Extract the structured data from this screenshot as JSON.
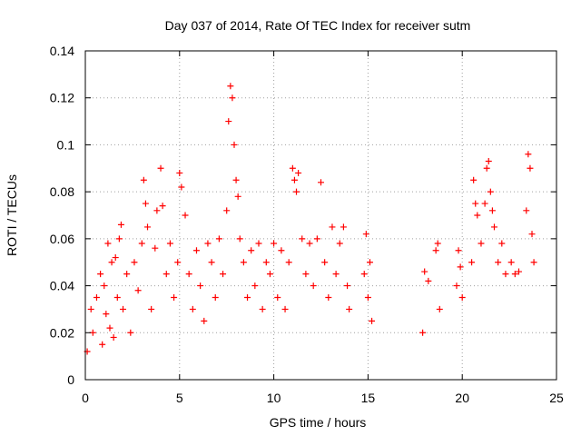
{
  "chart_data": {
    "type": "scatter",
    "title": "Day 037 of 2014, Rate Of TEC Index for receiver sutm",
    "xlabel": "GPS time / hours",
    "ylabel": "ROTI / TECUs",
    "xlim": [
      0,
      25
    ],
    "ylim": [
      0,
      0.14
    ],
    "x_ticks": [
      0,
      5,
      10,
      15,
      20,
      25
    ],
    "x_tick_labels": [
      "0",
      "5",
      "10",
      "15",
      "20",
      "25"
    ],
    "y_ticks": [
      0,
      0.02,
      0.04,
      0.06,
      0.08,
      0.1,
      0.12,
      0.14
    ],
    "y_tick_labels": [
      "0",
      "0.02",
      "0.04",
      "0.06",
      "0.08",
      "0.1",
      "0.12",
      "0.14"
    ],
    "grid": true,
    "marker": "plus",
    "color": "#ff0000",
    "series": [
      {
        "name": "ROTI",
        "points": [
          [
            0.1,
            0.012
          ],
          [
            0.3,
            0.03
          ],
          [
            0.4,
            0.02
          ],
          [
            0.6,
            0.035
          ],
          [
            0.8,
            0.045
          ],
          [
            0.9,
            0.015
          ],
          [
            1.0,
            0.04
          ],
          [
            1.1,
            0.028
          ],
          [
            1.2,
            0.058
          ],
          [
            1.3,
            0.022
          ],
          [
            1.4,
            0.05
          ],
          [
            1.5,
            0.018
          ],
          [
            1.6,
            0.052
          ],
          [
            1.7,
            0.035
          ],
          [
            1.8,
            0.06
          ],
          [
            1.9,
            0.066
          ],
          [
            2.0,
            0.03
          ],
          [
            2.2,
            0.045
          ],
          [
            2.4,
            0.02
          ],
          [
            2.6,
            0.05
          ],
          [
            2.8,
            0.038
          ],
          [
            3.0,
            0.058
          ],
          [
            3.1,
            0.085
          ],
          [
            3.2,
            0.075
          ],
          [
            3.3,
            0.065
          ],
          [
            3.5,
            0.03
          ],
          [
            3.7,
            0.056
          ],
          [
            3.8,
            0.072
          ],
          [
            4.0,
            0.09
          ],
          [
            4.1,
            0.074
          ],
          [
            4.3,
            0.045
          ],
          [
            4.5,
            0.058
          ],
          [
            4.7,
            0.035
          ],
          [
            4.9,
            0.05
          ],
          [
            5.0,
            0.088
          ],
          [
            5.1,
            0.082
          ],
          [
            5.3,
            0.07
          ],
          [
            5.5,
            0.045
          ],
          [
            5.7,
            0.03
          ],
          [
            5.9,
            0.055
          ],
          [
            6.1,
            0.04
          ],
          [
            6.3,
            0.025
          ],
          [
            6.5,
            0.058
          ],
          [
            6.7,
            0.05
          ],
          [
            6.9,
            0.035
          ],
          [
            7.1,
            0.06
          ],
          [
            7.3,
            0.045
          ],
          [
            7.5,
            0.072
          ],
          [
            7.6,
            0.11
          ],
          [
            7.7,
            0.125
          ],
          [
            7.8,
            0.12
          ],
          [
            7.9,
            0.1
          ],
          [
            8.0,
            0.085
          ],
          [
            8.1,
            0.078
          ],
          [
            8.2,
            0.06
          ],
          [
            8.4,
            0.05
          ],
          [
            8.6,
            0.035
          ],
          [
            8.8,
            0.055
          ],
          [
            9.0,
            0.04
          ],
          [
            9.2,
            0.058
          ],
          [
            9.4,
            0.03
          ],
          [
            9.6,
            0.05
          ],
          [
            9.8,
            0.045
          ],
          [
            10.0,
            0.058
          ],
          [
            10.2,
            0.035
          ],
          [
            10.4,
            0.055
          ],
          [
            10.6,
            0.03
          ],
          [
            10.8,
            0.05
          ],
          [
            11.0,
            0.09
          ],
          [
            11.1,
            0.085
          ],
          [
            11.2,
            0.08
          ],
          [
            11.3,
            0.088
          ],
          [
            11.5,
            0.06
          ],
          [
            11.7,
            0.045
          ],
          [
            11.9,
            0.058
          ],
          [
            12.1,
            0.04
          ],
          [
            12.3,
            0.06
          ],
          [
            12.5,
            0.084
          ],
          [
            12.7,
            0.05
          ],
          [
            12.9,
            0.035
          ],
          [
            13.1,
            0.065
          ],
          [
            13.3,
            0.045
          ],
          [
            13.5,
            0.058
          ],
          [
            13.7,
            0.065
          ],
          [
            13.9,
            0.04
          ],
          [
            14.0,
            0.03
          ],
          [
            14.8,
            0.045
          ],
          [
            14.9,
            0.062
          ],
          [
            15.0,
            0.035
          ],
          [
            15.1,
            0.05
          ],
          [
            15.2,
            0.025
          ],
          [
            17.9,
            0.02
          ],
          [
            18.0,
            0.046
          ],
          [
            18.2,
            0.042
          ],
          [
            18.6,
            0.055
          ],
          [
            18.7,
            0.058
          ],
          [
            18.8,
            0.03
          ],
          [
            19.7,
            0.04
          ],
          [
            19.8,
            0.055
          ],
          [
            19.9,
            0.048
          ],
          [
            20.0,
            0.035
          ],
          [
            20.5,
            0.05
          ],
          [
            20.6,
            0.085
          ],
          [
            20.7,
            0.075
          ],
          [
            20.8,
            0.07
          ],
          [
            21.0,
            0.058
          ],
          [
            21.2,
            0.075
          ],
          [
            21.3,
            0.09
          ],
          [
            21.4,
            0.093
          ],
          [
            21.5,
            0.08
          ],
          [
            21.6,
            0.072
          ],
          [
            21.7,
            0.065
          ],
          [
            21.9,
            0.05
          ],
          [
            22.1,
            0.058
          ],
          [
            22.3,
            0.045
          ],
          [
            22.6,
            0.05
          ],
          [
            22.8,
            0.045
          ],
          [
            23.0,
            0.046
          ],
          [
            23.4,
            0.072
          ],
          [
            23.5,
            0.096
          ],
          [
            23.6,
            0.09
          ],
          [
            23.7,
            0.062
          ],
          [
            23.8,
            0.05
          ]
        ]
      }
    ]
  }
}
